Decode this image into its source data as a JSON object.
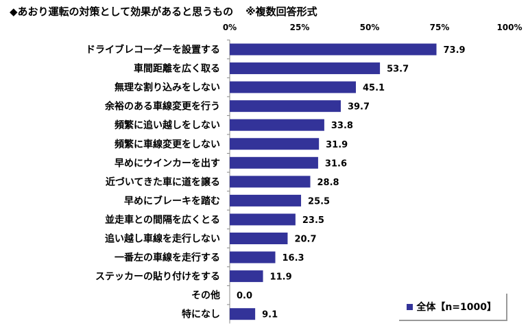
{
  "chart_data": {
    "type": "bar",
    "orientation": "horizontal",
    "title": "◆あおり運転の対策として効果があると思うもの",
    "subtitle": "※複数回答形式",
    "categories": [
      "ドライブレコーダーを設置する",
      "車間距離を広く取る",
      "無理な割り込みをしない",
      "余裕のある車線変更を行う",
      "頻繁に追い越しをしない",
      "頻繁に車線変更をしない",
      "早めにウインカーを出す",
      "近づいてきた車に道を譲る",
      "早めにブレーキを踏む",
      "並走車との間隔を広くとる",
      "追い越し車線を走行しない",
      "一番左の車線を走行する",
      "ステッカーの貼り付けをする",
      "その他",
      "特になし"
    ],
    "series": [
      {
        "name": "全体【n=1000】",
        "values": [
          73.9,
          53.7,
          45.1,
          39.7,
          33.8,
          31.9,
          31.6,
          28.8,
          25.5,
          23.5,
          20.7,
          16.3,
          11.9,
          0.0,
          9.1
        ],
        "color": "#333399"
      }
    ],
    "xlim": [
      0,
      100
    ],
    "xticks": [
      "0%",
      "25%",
      "50%",
      "75%",
      "100%"
    ],
    "legend_position": "bottom-right"
  }
}
